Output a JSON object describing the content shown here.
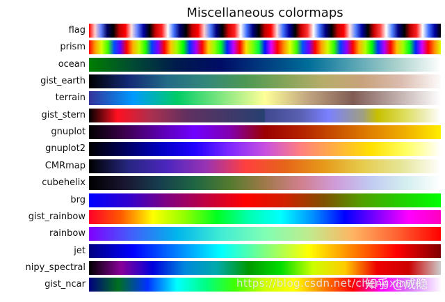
{
  "chart_data": {
    "type": "heatmap",
    "title": "Miscellaneous colormaps",
    "xlabel": "",
    "ylabel": "",
    "grid": false,
    "legend": null,
    "rows": [
      {
        "name": "flag",
        "stops": [
          "#ff0000",
          "#ffd0d0",
          "#6080ff",
          "#000060",
          "#000000",
          "#c00000",
          "#ff0000",
          "#ffe0e0",
          "#6080ff",
          "#0000a0",
          "#000000",
          "#d00000",
          "#ff2020",
          "#ffffff",
          "#4070ff",
          "#000070",
          "#000000",
          "#c00000",
          "#ff0000",
          "#ffd0d0",
          "#5080ff",
          "#000080",
          "#000000",
          "#d00000",
          "#ff2020",
          "#ffffff",
          "#4070ff",
          "#000080",
          "#000000",
          "#c00000",
          "#ff0000",
          "#ffe0e0",
          "#4070ff",
          "#0000a0",
          "#000000",
          "#d00000",
          "#ff3030",
          "#ffffff",
          "#4070ff",
          "#000080",
          "#000000",
          "#c00000",
          "#ff0000",
          "#ffe0e0",
          "#5080ff",
          "#0000a0",
          "#000000",
          "#d00000",
          "#ff4040",
          "#ffffff",
          "#5080ff",
          "#000080",
          "#000000",
          "#c00000",
          "#ff2020",
          "#ffffff",
          "#4070ff",
          "#0000a0",
          "#000000"
        ]
      },
      {
        "name": "prism",
        "stops": [
          "#ff0000",
          "#ffa000",
          "#d8ff00",
          "#40ff00",
          "#0050ff",
          "#6000ff",
          "#ff0000",
          "#ffb000",
          "#c0ff00",
          "#20ff00",
          "#0040ff",
          "#8000ff",
          "#ff0000",
          "#ffc000",
          "#a0ff00",
          "#00ff00",
          "#0030ff",
          "#a000ff",
          "#ff0000",
          "#ffd000",
          "#90ff00",
          "#00ff20",
          "#0020ff",
          "#c000ff",
          "#ff0000",
          "#ffe000",
          "#80ff00",
          "#00ff40",
          "#0010ff",
          "#e000ff",
          "#ff0000",
          "#ff9000",
          "#e0ff00",
          "#40ff00",
          "#0050ff",
          "#7000ff",
          "#ff0000",
          "#ffa000",
          "#d0ff00",
          "#30ff00",
          "#0040ff",
          "#9000ff",
          "#ff0000",
          "#ffb000",
          "#b0ff00",
          "#00ff00",
          "#0030ff",
          "#b000ff",
          "#ff0000",
          "#ffc000",
          "#a0ff00",
          "#00ff20",
          "#0020ff",
          "#d000ff",
          "#ff0000",
          "#ff9000",
          "#e0ff00"
        ]
      },
      {
        "name": "ocean",
        "stops": [
          "#007f00",
          "#004a33",
          "#001a4d",
          "#000c66",
          "#003d80",
          "#006e99",
          "#55a3b3",
          "#aad1cc",
          "#ffffff"
        ]
      },
      {
        "name": "gist_earth",
        "stops": [
          "#000000",
          "#132875",
          "#226b86",
          "#33887a",
          "#4c9853",
          "#84a458",
          "#b7ad6a",
          "#c9a27d",
          "#dbbdb0",
          "#fdfbfb"
        ]
      },
      {
        "name": "terrain",
        "stops": [
          "#333399",
          "#0099ff",
          "#00cc66",
          "#80e680",
          "#ffff99",
          "#bfa37f",
          "#805c54",
          "#bfadab",
          "#ffffff"
        ]
      },
      {
        "name": "gist_stern",
        "stops": [
          "#000000",
          "#ff1020",
          "#a83050",
          "#603060",
          "#264070",
          "#404890",
          "#5a60b0",
          "#7a80ff",
          "#a0a080",
          "#c8c000",
          "#dede60",
          "#ececb0",
          "#ffffff"
        ],
        "positions": [
          0,
          8,
          18,
          28,
          49.9,
          50,
          60,
          68,
          78,
          82,
          90,
          95,
          100
        ]
      },
      {
        "name": "gnuplot",
        "stops": [
          "#000000",
          "#3c004b",
          "#5b00ad",
          "#7000ff",
          "#8200b0",
          "#9b0000",
          "#b32000",
          "#c85000",
          "#e08000",
          "#f0b000",
          "#ffee00"
        ]
      },
      {
        "name": "gnuplot2",
        "stops": [
          "#000000",
          "#00005a",
          "#0000c0",
          "#2000ff",
          "#7f28ff",
          "#c850e0",
          "#ff7f80",
          "#ffb040",
          "#ffe000",
          "#ffff60",
          "#ffffff"
        ]
      },
      {
        "name": "CMRmap",
        "stops": [
          "#000000",
          "#262680",
          "#4c26bf",
          "#9933b3",
          "#ff3f3f",
          "#e66419",
          "#e6991a",
          "#e6cc4d",
          "#e6e699",
          "#ffffff"
        ]
      },
      {
        "name": "cubehelix",
        "stops": [
          "#000000",
          "#1a1530",
          "#163d4e",
          "#1f6642",
          "#547a2f",
          "#a07949",
          "#d07f8c",
          "#cf9cd9",
          "#c1caf2",
          "#d3eeef",
          "#ffffff"
        ]
      },
      {
        "name": "brg",
        "stops": [
          "#0000ff",
          "#3000cf",
          "#7f0080",
          "#c00040",
          "#ff0000",
          "#d02000",
          "#805000",
          "#50a000",
          "#20d000",
          "#00ff00"
        ]
      },
      {
        "name": "gist_rainbow",
        "stops": [
          "#ff0029",
          "#ff5a00",
          "#ffff00",
          "#90ff00",
          "#00ff20",
          "#00ffb0",
          "#00ffff",
          "#0090ff",
          "#0000ff",
          "#8000ff",
          "#ff00ff",
          "#ff00bf"
        ]
      },
      {
        "name": "rainbow",
        "stops": [
          "#8000ff",
          "#4062fa",
          "#00b5eb",
          "#40ecd4",
          "#80ffb4",
          "#c0eb8d",
          "#ffb462",
          "#ff6232",
          "#ff0000"
        ]
      },
      {
        "name": "jet",
        "stops": [
          "#000080",
          "#0000ff",
          "#0080ff",
          "#00ffff",
          "#80ff80",
          "#ffff00",
          "#ff8000",
          "#ff0000",
          "#800000"
        ]
      },
      {
        "name": "nipy_spectral",
        "stops": [
          "#000000",
          "#880099",
          "#0000dd",
          "#0088dd",
          "#00aaaa",
          "#009900",
          "#00dd00",
          "#ccff00",
          "#ffcc00",
          "#ee0000",
          "#cc0000",
          "#cccccc"
        ]
      },
      {
        "name": "gist_ncar",
        "stops": [
          "#000080",
          "#007020",
          "#0030ff",
          "#00ffff",
          "#00ff80",
          "#40ff00",
          "#d0ff00",
          "#ffff00",
          "#ff8000",
          "#ff0000",
          "#ff00ff",
          "#d880ff",
          "#fff8ff"
        ]
      }
    ],
    "xlim": [
      0,
      1
    ],
    "orientation": "horizontal"
  },
  "watermark": {
    "url_text": "https://blog.csdn.net/chengxinwei",
    "site_text": "知乎 @成隐"
  }
}
